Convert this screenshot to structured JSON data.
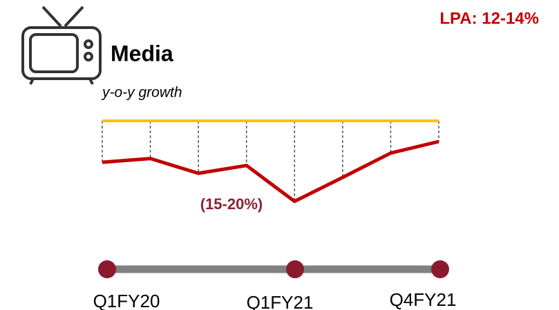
{
  "chart_data": {
    "type": "line",
    "title": "Media",
    "lpa_label": "LPA: 12-14%",
    "subtitle": "y-o-y growth",
    "annotation": "(15-20%)",
    "categories": [
      null,
      null,
      null,
      null,
      null,
      null,
      null,
      null
    ],
    "series": [
      {
        "color": "#c00000",
        "values": [
          -9.0,
          -8.2,
          -11.4,
          -9.7,
          -17.5,
          -12.3,
          -7.0,
          -4.5
        ]
      }
    ],
    "ylim": [
      -18,
      0
    ],
    "reference_color": "#ffc000",
    "timeline": {
      "labels": [
        "Q1FY20",
        "Q1FY21",
        "Q4FY21"
      ],
      "dot_color": "#8b1a2e",
      "bar_color": "#808080"
    }
  }
}
